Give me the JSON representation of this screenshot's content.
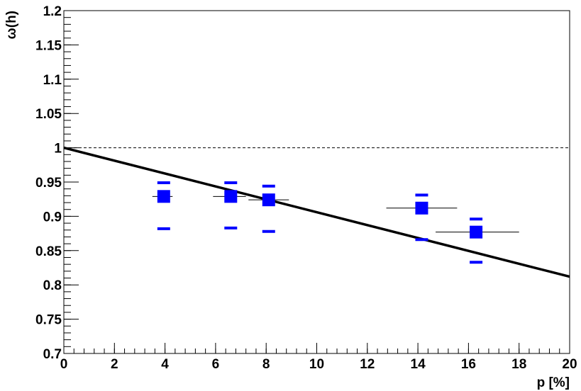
{
  "chart_data": {
    "type": "scatter",
    "xlabel": "p [%]",
    "ylabel": "ω(h)",
    "xlim": [
      0,
      20
    ],
    "ylim": [
      0.7,
      1.2
    ],
    "x_ticks": [
      0,
      2,
      4,
      6,
      8,
      10,
      12,
      14,
      16,
      18,
      20
    ],
    "x_tick_labels": [
      "0",
      "2",
      "4",
      "6",
      "8",
      "10",
      "12",
      "14",
      "16",
      "18",
      "20"
    ],
    "y_ticks": [
      0.7,
      0.75,
      0.8,
      0.85,
      0.9,
      0.95,
      1.0,
      1.05,
      1.1,
      1.15,
      1.2
    ],
    "y_tick_labels": [
      "0.7",
      "0.75",
      "0.8",
      "0.85",
      "0.9",
      "0.95",
      "1",
      "1.05",
      "1.1",
      "1.15",
      "1.2"
    ],
    "grid": false,
    "reference_line": {
      "y": 1.0,
      "style": "dashed"
    },
    "fit_line": {
      "x": [
        0,
        20
      ],
      "y": [
        1.0,
        0.812
      ]
    },
    "marker_color": "#0000ff",
    "points": [
      {
        "x": 3.95,
        "y": 0.929,
        "x_err_low": 0.45,
        "x_err_high": 0.35,
        "sys_low": 0.882,
        "sys_high": 0.949
      },
      {
        "x": 6.6,
        "y": 0.929,
        "x_err_low": 0.7,
        "x_err_high": 0.6,
        "sys_low": 0.883,
        "sys_high": 0.949
      },
      {
        "x": 8.1,
        "y": 0.924,
        "x_err_low": 0.8,
        "x_err_high": 0.8,
        "sys_low": 0.878,
        "sys_high": 0.944
      },
      {
        "x": 14.15,
        "y": 0.912,
        "x_err_low": 1.4,
        "x_err_high": 1.4,
        "sys_low": 0.866,
        "sys_high": 0.931
      },
      {
        "x": 16.3,
        "y": 0.877,
        "x_err_low": 1.6,
        "x_err_high": 1.7,
        "sys_low": 0.833,
        "sys_high": 0.896
      }
    ]
  }
}
